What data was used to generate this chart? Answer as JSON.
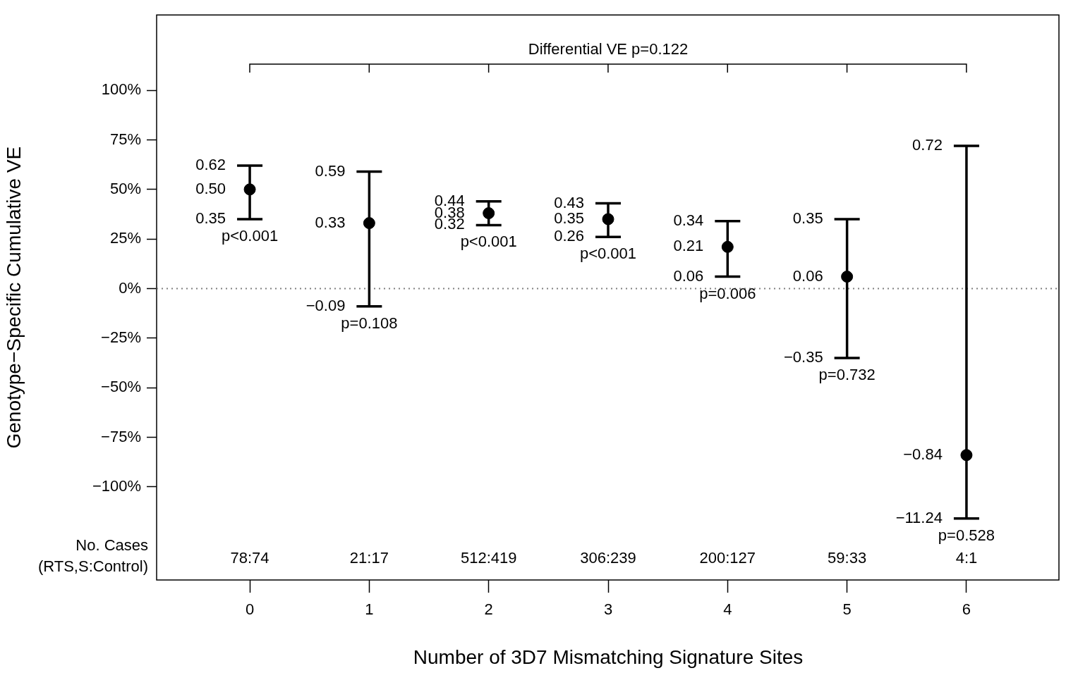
{
  "chart_data": {
    "type": "scatter",
    "xlabel": "Number of 3D7 Mismatching Signature Sites",
    "ylabel": "Genotype−Specific Cumulative VE",
    "x": [
      0,
      1,
      2,
      3,
      4,
      5,
      6
    ],
    "xlim": [
      -0.78,
      6.78
    ],
    "xticks": [
      0,
      1,
      2,
      3,
      4,
      5,
      6
    ],
    "ylim": [
      -1.47,
      1.38
    ],
    "yticks": [
      {
        "value": 1,
        "label": "100%"
      },
      {
        "value": 0.75,
        "label": "75%"
      },
      {
        "value": 0.5,
        "label": "50%"
      },
      {
        "value": 0.25,
        "label": "25%"
      },
      {
        "value": 0,
        "label": "0%"
      },
      {
        "value": -0.25,
        "label": "−25%"
      },
      {
        "value": -0.5,
        "label": "−50%"
      },
      {
        "value": -0.75,
        "label": "−75%"
      },
      {
        "value": -1,
        "label": "−100%"
      }
    ],
    "series": [
      {
        "color": "#000000",
        "values": [
          0.5,
          0.33,
          0.38,
          0.35,
          0.21,
          0.06,
          -0.84
        ],
        "errors": [
          [
            0.35,
            0.62
          ],
          [
            -0.09,
            0.59
          ],
          [
            0.32,
            0.44
          ],
          [
            0.26,
            0.43
          ],
          [
            0.06,
            0.34
          ],
          [
            -0.35,
            0.35
          ],
          [
            -1.16,
            0.72
          ]
        ],
        "value_labels": [
          "0.50",
          "0.33",
          "0.38",
          "0.35",
          "0.21",
          "0.06",
          "−0.84"
        ]
      }
    ],
    "marker": "circle",
    "grid": false,
    "legend": false,
    "ref_lines": [
      {
        "axis": "y",
        "value": 0,
        "color": "#808080",
        "line_style": "dotted"
      }
    ],
    "annotations": [
      "Differential VE p=0.122",
      "No. Cases\n(RTS,S:Control)",
      "78:74",
      "21:17",
      "512:419",
      "306:239",
      "200:127",
      "59:33",
      "4:1",
      {
        "text": "0.62",
        "x": 0,
        "y": 0.62
      },
      {
        "text": "0.35",
        "x": 0,
        "y": 0.35
      },
      {
        "text": "p<0.001",
        "x": 0,
        "y": 0.35
      },
      {
        "text": "0.59",
        "x": 1,
        "y": 0.59
      },
      {
        "text": "−0.09",
        "x": 1,
        "y": -0.09
      },
      {
        "text": "p=0.108",
        "x": 1,
        "y": -0.09
      },
      {
        "text": "0.44",
        "x": 2,
        "y": 0.44
      },
      {
        "text": "0.32",
        "x": 2,
        "y": 0.32
      },
      {
        "text": "p<0.001",
        "x": 2,
        "y": 0.32
      },
      {
        "text": "0.43",
        "x": 3,
        "y": 0.43
      },
      {
        "text": "0.26",
        "x": 3,
        "y": 0.26
      },
      {
        "text": "p<0.001",
        "x": 3,
        "y": 0.26
      },
      {
        "text": "0.34",
        "x": 4,
        "y": 0.34
      },
      {
        "text": "0.06",
        "x": 4,
        "y": 0.06
      },
      {
        "text": "p=0.006",
        "x": 4,
        "y": 0.06
      },
      {
        "text": "0.35",
        "x": 5,
        "y": 0.35
      },
      {
        "text": "−0.35",
        "x": 5,
        "y": -0.35
      },
      {
        "text": "p=0.732",
        "x": 5,
        "y": -0.35
      },
      {
        "text": "0.72",
        "x": 6,
        "y": 0.72
      },
      {
        "text": "−11.24",
        "x": 6,
        "y": -1.16
      },
      {
        "text": "p=0.528",
        "x": 6,
        "y": -1.16
      }
    ]
  }
}
